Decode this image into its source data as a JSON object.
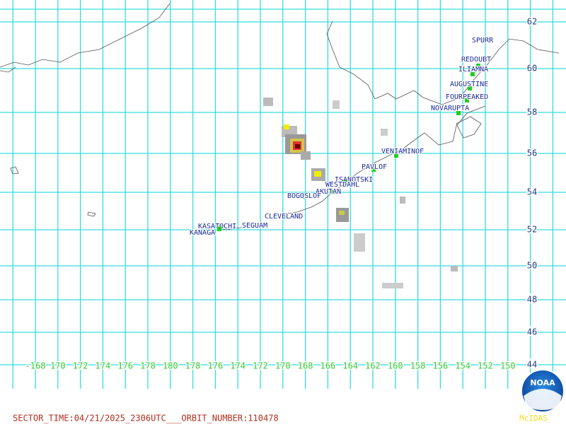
{
  "map": {
    "latitude_labels": [
      "62",
      "60",
      "58",
      "56",
      "54",
      "52",
      "50",
      "48",
      "46",
      "44"
    ],
    "longitude_labels": [
      "-168",
      "170",
      "172",
      "174",
      "176",
      "178",
      "180",
      "178",
      "176",
      "174",
      "172",
      "170",
      "168",
      "166",
      "164",
      "162",
      "160",
      "158",
      "156",
      "154",
      "152",
      "150"
    ],
    "volcanoes": [
      "SPURR",
      "REDOUBT",
      "ILIAMNA",
      "AUGUSTINE",
      "FOURPEAKED",
      "NOVARUPTA",
      "VENIAMINOF",
      "PAVLOF",
      "ISANOTSKI",
      "WESTDAHL",
      "AKUTAN",
      "BOGOSLOF",
      "CLEVELAND",
      "SEGUAM",
      "KASATOCHI",
      "KANAGA"
    ],
    "footer": "SECTOR_TIME:04/21/2025_2306UTC___ORBIT_NUMBER:110478",
    "logo": {
      "name": "NOAA",
      "caption": "McIDAS"
    }
  }
}
